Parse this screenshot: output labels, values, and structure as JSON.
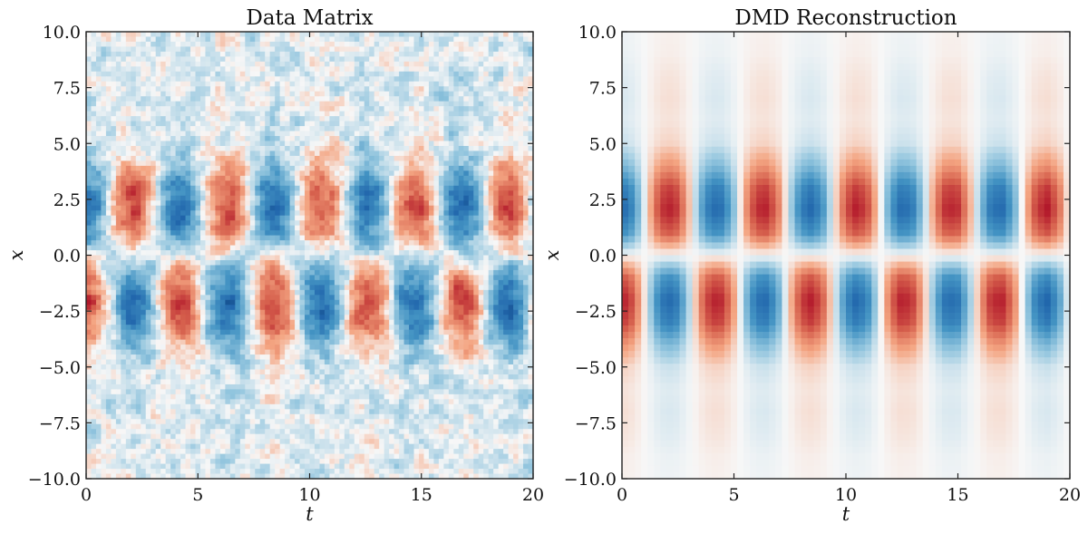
{
  "chart_data": [
    {
      "type": "heatmap",
      "title": "Data Matrix",
      "xlabel": "t",
      "ylabel": "x",
      "xlim": [
        0,
        20
      ],
      "ylim": [
        -10,
        10
      ],
      "xticks": [
        "0",
        "5",
        "10",
        "15",
        "20"
      ],
      "yticks": [
        "10.0",
        "7.5",
        "5.0",
        "2.5",
        "0.0",
        "−2.5",
        "−5.0",
        "−7.5",
        "−10.0"
      ],
      "colormap": "RdBu_r",
      "noisy": true,
      "x": [
        -10,
        -9,
        -8,
        -7,
        -6,
        -5,
        -4,
        -3,
        -2,
        -1,
        0,
        1,
        2,
        3,
        4,
        5,
        6,
        7,
        8,
        9,
        10
      ],
      "spatial_mode": [
        0.03,
        0.03,
        0.04,
        0.05,
        0.05,
        0.11,
        0.4,
        0.83,
        0.99,
        0.66,
        0,
        -0.66,
        -0.99,
        -0.83,
        -0.4,
        -0.11,
        -0.05,
        -0.05,
        -0.04,
        -0.03,
        -0.03
      ],
      "t": [
        0,
        0.5,
        1,
        1.5,
        2,
        2.5,
        3,
        3.5,
        4,
        4.5,
        5,
        5.5,
        6,
        6.5,
        7,
        7.5,
        8,
        8.5,
        9,
        9.5,
        10,
        10.5,
        11,
        11.5,
        12,
        12.5,
        13,
        13.5,
        14,
        14.5,
        15,
        15.5,
        16,
        16.5,
        17,
        17.5,
        18,
        18.5,
        19,
        19.5,
        20
      ],
      "temporal_coefficients": [
        1,
        0.73,
        0.075,
        -0.62,
        -0.99,
        -0.83,
        -0.22,
        0.5,
        0.95,
        0.9,
        0.36,
        -0.37,
        -0.9,
        -0.95,
        -0.5,
        0.22,
        0.82,
        0.99,
        0.62,
        -0.07,
        -0.73,
        -1,
        -0.72,
        -0.08,
        0.62,
        0.99,
        0.81,
        0.24,
        -0.5,
        -0.95,
        -0.88,
        -0.36,
        0.36,
        0.91,
        0.94,
        0.51,
        -0.21,
        -0.82,
        -0.99,
        -0.63,
        0.07
      ]
    },
    {
      "type": "heatmap",
      "title": "DMD Reconstruction",
      "xlabel": "t",
      "ylabel": "x",
      "xlim": [
        0,
        20
      ],
      "ylim": [
        -10,
        10
      ],
      "xticks": [
        "0",
        "5",
        "10",
        "15",
        "20"
      ],
      "yticks": [
        "10.0",
        "7.5",
        "5.0",
        "2.5",
        "0.0",
        "−2.5",
        "−5.0",
        "−7.5",
        "−10.0"
      ],
      "colormap": "RdBu_r",
      "noisy": false,
      "x": [
        -10,
        -9,
        -8,
        -7,
        -6,
        -5,
        -4,
        -3,
        -2,
        -1,
        0,
        1,
        2,
        3,
        4,
        5,
        6,
        7,
        8,
        9,
        10
      ],
      "spatial_mode": [
        0.03,
        0.04,
        0.08,
        0.1,
        0.08,
        0.15,
        0.42,
        0.83,
        0.99,
        0.7,
        0,
        -0.7,
        -0.99,
        -0.83,
        -0.42,
        -0.15,
        -0.08,
        -0.1,
        -0.08,
        -0.04,
        -0.03
      ],
      "t": [
        0,
        0.5,
        1,
        1.5,
        2,
        2.5,
        3,
        3.5,
        4,
        4.5,
        5,
        5.5,
        6,
        6.5,
        7,
        7.5,
        8,
        8.5,
        9,
        9.5,
        10,
        10.5,
        11,
        11.5,
        12,
        12.5,
        13,
        13.5,
        14,
        14.5,
        15,
        15.5,
        16,
        16.5,
        17,
        17.5,
        18,
        18.5,
        19,
        19.5,
        20
      ],
      "temporal_coefficients": [
        1,
        0.73,
        0.075,
        -0.62,
        -0.99,
        -0.83,
        -0.22,
        0.5,
        0.95,
        0.9,
        0.36,
        -0.37,
        -0.9,
        -0.95,
        -0.5,
        0.22,
        0.82,
        0.99,
        0.62,
        -0.07,
        -0.73,
        -1,
        -0.72,
        -0.08,
        0.62,
        0.99,
        0.81,
        0.24,
        -0.5,
        -0.95,
        -0.88,
        -0.36,
        0.36,
        0.91,
        0.94,
        0.51,
        -0.21,
        -0.82,
        -0.99,
        -0.63,
        0.07
      ]
    }
  ]
}
